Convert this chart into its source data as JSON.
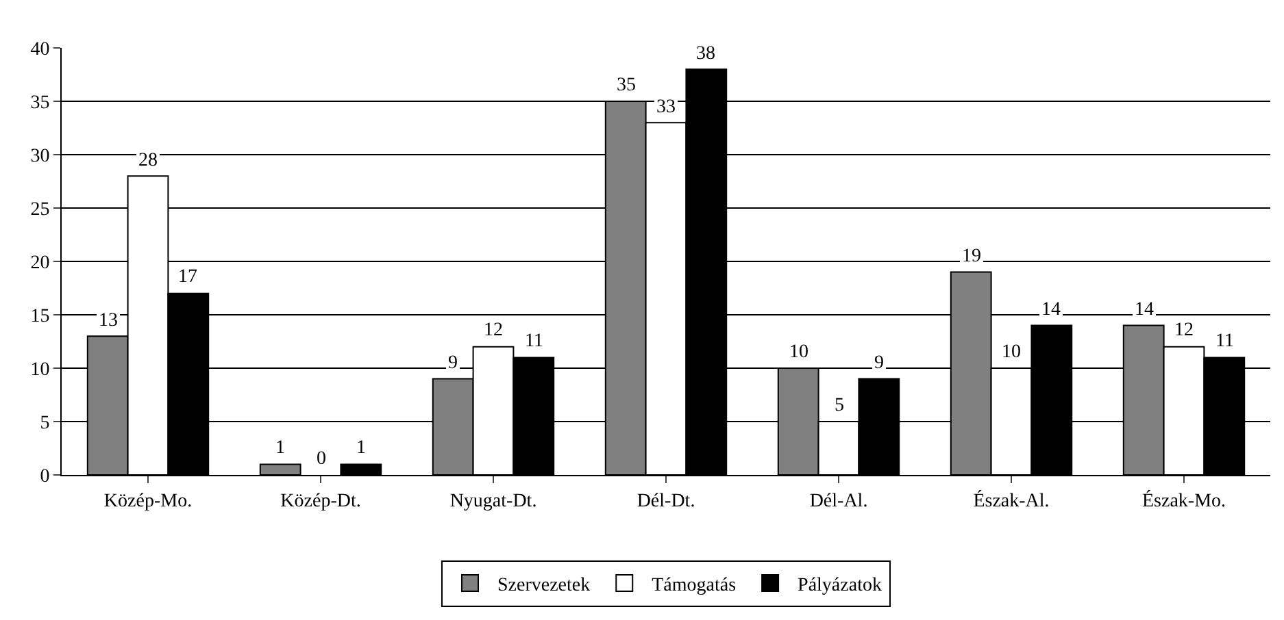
{
  "chart_data": {
    "type": "bar",
    "categories": [
      "Közép-Mo.",
      "Közép-Dt.",
      "Nyugat-Dt.",
      "Dél-Dt.",
      "Dél-Al.",
      "Észak-Al.",
      "Észak-Mo."
    ],
    "series": [
      {
        "name": "Szervezetek",
        "color": "#808080",
        "values": [
          13,
          1,
          9,
          35,
          10,
          19,
          14
        ]
      },
      {
        "name": "Támogatás",
        "color": "#ffffff",
        "values": [
          28,
          0,
          12,
          33,
          5,
          10,
          12
        ]
      },
      {
        "name": "Pályázatok",
        "color": "#000000",
        "values": [
          17,
          1,
          11,
          38,
          9,
          14,
          11
        ]
      }
    ],
    "ylim": [
      0,
      40
    ],
    "yticks": [
      0,
      5,
      10,
      15,
      20,
      25,
      30,
      35,
      40
    ],
    "grid": "y",
    "legend": "bottom",
    "data_labels": true
  }
}
